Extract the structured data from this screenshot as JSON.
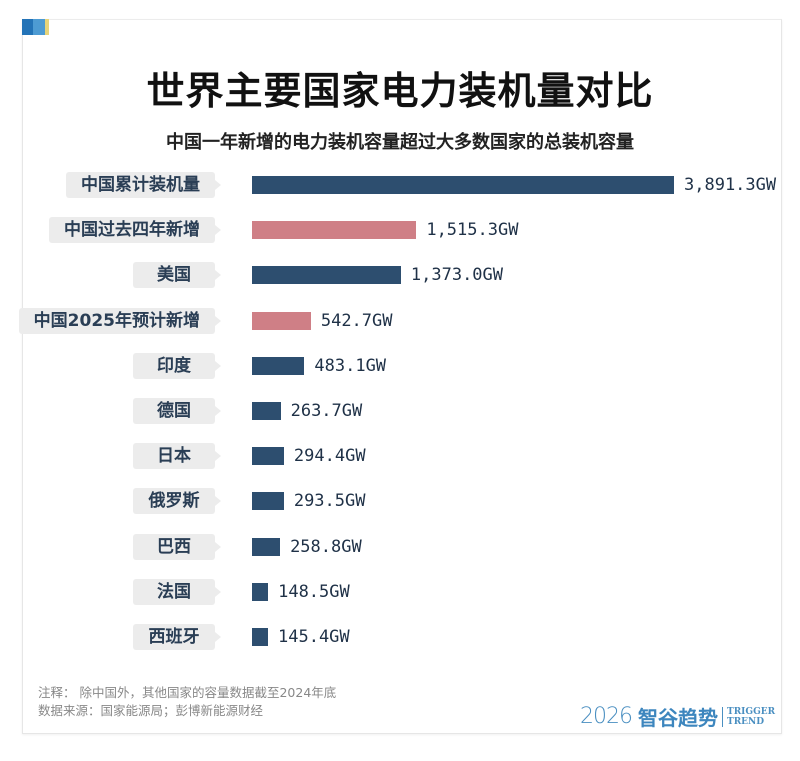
{
  "colors": {
    "primary": "#2d4e6f",
    "highlight": "#cf7f86",
    "corner": [
      "#2373b7",
      "#4d9bd3",
      "#e7d47a"
    ]
  },
  "chart_data": {
    "type": "bar",
    "orientation": "horizontal",
    "title": "世界主要国家电力装机量对比",
    "subtitle": "中国一年新增的电力装机容量超过大多数国家的总装机容量",
    "unit": "GW",
    "categories": [
      "中国累计装机量",
      "中国过去四年新增",
      "美国",
      "中国2025年预计新增",
      "印度",
      "德国",
      "日本",
      "俄罗斯",
      "巴西",
      "法国",
      "西班牙"
    ],
    "values": [
      3891.3,
      1515.3,
      1373.0,
      542.7,
      483.1,
      263.7,
      294.4,
      293.5,
      258.8,
      148.5,
      145.4
    ],
    "labels": [
      "3,891.3GW",
      "1,515.3GW",
      "1,373.0GW",
      "542.7GW",
      "483.1GW",
      "263.7GW",
      "294.4GW",
      "293.5GW",
      "258.8GW",
      "148.5GW",
      "145.4GW"
    ],
    "highlighted": [
      false,
      true,
      false,
      true,
      false,
      false,
      false,
      false,
      false,
      false,
      false
    ],
    "grid": false
  },
  "footer": {
    "note": "注释：  除中国外，其他国家的容量数据截至2024年底",
    "source": "数据来源：国家能源局；彭博新能源财经"
  },
  "logo": {
    "year": "2026",
    "cn": "智谷趋势",
    "en1": "TRIGGER",
    "en2": "TREND"
  }
}
